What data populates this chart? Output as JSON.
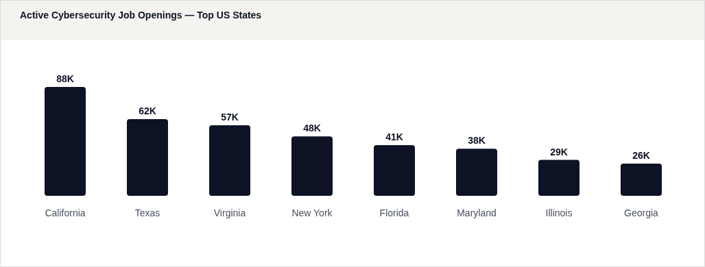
{
  "chart_data": {
    "type": "bar",
    "title": "Active Cybersecurity Job Openings — Top US States",
    "categories": [
      "California",
      "Texas",
      "Virginia",
      "New York",
      "Florida",
      "Maryland",
      "Illinois",
      "Georgia"
    ],
    "values": [
      88,
      62,
      57,
      48,
      41,
      38,
      29,
      26
    ],
    "value_labels": [
      "88K",
      "62K",
      "57K",
      "48K",
      "41K",
      "38K",
      "29K",
      "26K"
    ],
    "color": "#0d1224"
  }
}
